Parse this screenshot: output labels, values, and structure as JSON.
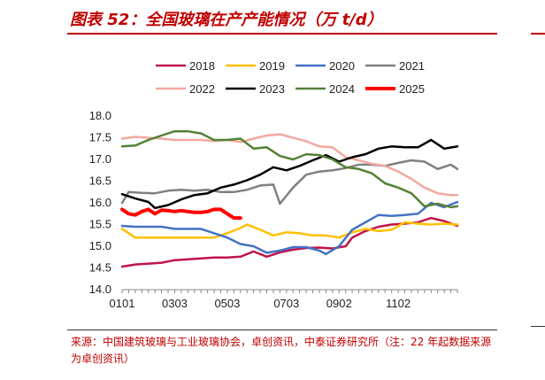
{
  "header": {
    "title": "图表 52：全国玻璃在产产能情况（万 t/d）",
    "accent_color": "#c00000"
  },
  "source_note": "来源：中国建筑玻璃与工业玻璃协会，卓创资讯，中泰证券研究所（注：22 年起数据来源为卓创资讯）",
  "chart_data": {
    "type": "line",
    "title": "",
    "xlabel": "",
    "ylabel": "",
    "x_ticks": [
      "0101",
      "0303",
      "0503",
      "0703",
      "0902",
      "1102"
    ],
    "x_tick_weeks": [
      1,
      9,
      17,
      26,
      34,
      43
    ],
    "x_range_weeks": [
      1,
      52
    ],
    "y_ticks": [
      "14.0",
      "14.5",
      "15.0",
      "15.5",
      "16.0",
      "16.5",
      "17.0",
      "17.5",
      "18.0"
    ],
    "ylim": [
      14.0,
      18.0
    ],
    "grid": false,
    "legend_position": "top",
    "series": [
      {
        "name": "2018",
        "color": "#c0144b",
        "width": 2.5,
        "points": [
          [
            1,
            14.53
          ],
          [
            3,
            14.58
          ],
          [
            5,
            14.6
          ],
          [
            7,
            14.62
          ],
          [
            9,
            14.68
          ],
          [
            11,
            14.7
          ],
          [
            13,
            14.72
          ],
          [
            15,
            14.74
          ],
          [
            17,
            14.74
          ],
          [
            19,
            14.76
          ],
          [
            21,
            14.88
          ],
          [
            23,
            14.76
          ],
          [
            25,
            14.86
          ],
          [
            27,
            14.92
          ],
          [
            29,
            14.96
          ],
          [
            31,
            14.97
          ],
          [
            33,
            14.95
          ],
          [
            35,
            15.0
          ],
          [
            36,
            15.2
          ],
          [
            38,
            15.35
          ],
          [
            40,
            15.45
          ],
          [
            42,
            15.5
          ],
          [
            44,
            15.52
          ],
          [
            46,
            15.55
          ],
          [
            48,
            15.65
          ],
          [
            50,
            15.58
          ],
          [
            52,
            15.47
          ]
        ]
      },
      {
        "name": "2019",
        "color": "#ffc000",
        "width": 2.5,
        "points": [
          [
            1,
            15.4
          ],
          [
            3,
            15.2
          ],
          [
            5,
            15.2
          ],
          [
            7,
            15.2
          ],
          [
            9,
            15.2
          ],
          [
            11,
            15.2
          ],
          [
            13,
            15.2
          ],
          [
            15,
            15.2
          ],
          [
            17,
            15.3
          ],
          [
            19,
            15.42
          ],
          [
            20,
            15.5
          ],
          [
            22,
            15.38
          ],
          [
            24,
            15.25
          ],
          [
            26,
            15.32
          ],
          [
            28,
            15.3
          ],
          [
            30,
            15.25
          ],
          [
            32,
            15.25
          ],
          [
            34,
            15.2
          ],
          [
            36,
            15.32
          ],
          [
            38,
            15.4
          ],
          [
            40,
            15.35
          ],
          [
            42,
            15.38
          ],
          [
            44,
            15.55
          ],
          [
            46,
            15.52
          ],
          [
            48,
            15.5
          ],
          [
            50,
            15.52
          ],
          [
            52,
            15.5
          ]
        ]
      },
      {
        "name": "2020",
        "color": "#4472c4",
        "width": 2.5,
        "points": [
          [
            1,
            15.47
          ],
          [
            3,
            15.45
          ],
          [
            5,
            15.45
          ],
          [
            7,
            15.45
          ],
          [
            9,
            15.4
          ],
          [
            11,
            15.4
          ],
          [
            13,
            15.4
          ],
          [
            15,
            15.3
          ],
          [
            17,
            15.2
          ],
          [
            19,
            15.05
          ],
          [
            21,
            15.0
          ],
          [
            23,
            14.85
          ],
          [
            25,
            14.9
          ],
          [
            27,
            14.98
          ],
          [
            29,
            14.98
          ],
          [
            31,
            14.9
          ],
          [
            32,
            14.82
          ],
          [
            34,
            15.0
          ],
          [
            36,
            15.38
          ],
          [
            38,
            15.55
          ],
          [
            40,
            15.72
          ],
          [
            42,
            15.7
          ],
          [
            44,
            15.72
          ],
          [
            46,
            15.75
          ],
          [
            48,
            16.0
          ],
          [
            50,
            15.9
          ],
          [
            52,
            16.02
          ]
        ]
      },
      {
        "name": "2021",
        "color": "#808080",
        "width": 2.5,
        "points": [
          [
            1,
            16.0
          ],
          [
            2,
            16.25
          ],
          [
            4,
            16.23
          ],
          [
            6,
            16.22
          ],
          [
            8,
            16.28
          ],
          [
            10,
            16.3
          ],
          [
            12,
            16.28
          ],
          [
            14,
            16.3
          ],
          [
            16,
            16.25
          ],
          [
            18,
            16.25
          ],
          [
            20,
            16.3
          ],
          [
            22,
            16.4
          ],
          [
            24,
            16.42
          ],
          [
            25,
            15.98
          ],
          [
            27,
            16.35
          ],
          [
            29,
            16.65
          ],
          [
            31,
            16.72
          ],
          [
            33,
            16.75
          ],
          [
            35,
            16.8
          ],
          [
            37,
            16.88
          ],
          [
            39,
            16.88
          ],
          [
            41,
            16.85
          ],
          [
            43,
            16.92
          ],
          [
            45,
            16.98
          ],
          [
            47,
            16.95
          ],
          [
            49,
            16.78
          ],
          [
            51,
            16.88
          ],
          [
            52,
            16.78
          ]
        ]
      },
      {
        "name": "2022",
        "color": "#f4a9a0",
        "width": 2.5,
        "points": [
          [
            1,
            17.48
          ],
          [
            3,
            17.52
          ],
          [
            5,
            17.5
          ],
          [
            7,
            17.48
          ],
          [
            9,
            17.45
          ],
          [
            11,
            17.45
          ],
          [
            13,
            17.45
          ],
          [
            15,
            17.42
          ],
          [
            17,
            17.45
          ],
          [
            19,
            17.4
          ],
          [
            21,
            17.48
          ],
          [
            23,
            17.55
          ],
          [
            25,
            17.58
          ],
          [
            27,
            17.5
          ],
          [
            29,
            17.42
          ],
          [
            31,
            17.3
          ],
          [
            33,
            17.28
          ],
          [
            35,
            17.05
          ],
          [
            37,
            16.98
          ],
          [
            39,
            16.9
          ],
          [
            41,
            16.85
          ],
          [
            43,
            16.72
          ],
          [
            45,
            16.55
          ],
          [
            47,
            16.35
          ],
          [
            49,
            16.22
          ],
          [
            51,
            16.18
          ],
          [
            52,
            16.18
          ]
        ]
      },
      {
        "name": "2023",
        "color": "#000000",
        "width": 2.5,
        "points": [
          [
            1,
            16.2
          ],
          [
            3,
            16.1
          ],
          [
            5,
            16.02
          ],
          [
            6,
            15.88
          ],
          [
            8,
            15.95
          ],
          [
            10,
            16.08
          ],
          [
            12,
            16.18
          ],
          [
            14,
            16.22
          ],
          [
            16,
            16.35
          ],
          [
            18,
            16.42
          ],
          [
            20,
            16.52
          ],
          [
            22,
            16.65
          ],
          [
            24,
            16.82
          ],
          [
            26,
            16.75
          ],
          [
            28,
            16.85
          ],
          [
            30,
            16.98
          ],
          [
            32,
            17.1
          ],
          [
            34,
            16.95
          ],
          [
            36,
            17.05
          ],
          [
            38,
            17.12
          ],
          [
            40,
            17.25
          ],
          [
            42,
            17.3
          ],
          [
            44,
            17.28
          ],
          [
            46,
            17.28
          ],
          [
            48,
            17.45
          ],
          [
            50,
            17.25
          ],
          [
            52,
            17.3
          ]
        ]
      },
      {
        "name": "2024",
        "color": "#548235",
        "width": 2.5,
        "points": [
          [
            1,
            17.3
          ],
          [
            3,
            17.32
          ],
          [
            5,
            17.45
          ],
          [
            7,
            17.55
          ],
          [
            9,
            17.65
          ],
          [
            11,
            17.65
          ],
          [
            13,
            17.6
          ],
          [
            15,
            17.45
          ],
          [
            17,
            17.45
          ],
          [
            19,
            17.48
          ],
          [
            21,
            17.25
          ],
          [
            23,
            17.28
          ],
          [
            25,
            17.08
          ],
          [
            27,
            17.0
          ],
          [
            29,
            17.12
          ],
          [
            31,
            17.1
          ],
          [
            33,
            17.0
          ],
          [
            35,
            16.82
          ],
          [
            37,
            16.78
          ],
          [
            39,
            16.68
          ],
          [
            41,
            16.45
          ],
          [
            43,
            16.35
          ],
          [
            45,
            16.22
          ],
          [
            47,
            15.92
          ],
          [
            49,
            15.98
          ],
          [
            51,
            15.9
          ],
          [
            52,
            15.92
          ]
        ]
      },
      {
        "name": "2025",
        "color": "#ff0000",
        "width": 4,
        "points": [
          [
            1,
            15.85
          ],
          [
            2,
            15.75
          ],
          [
            3,
            15.72
          ],
          [
            4,
            15.8
          ],
          [
            5,
            15.85
          ],
          [
            6,
            15.75
          ],
          [
            7,
            15.83
          ],
          [
            8,
            15.82
          ],
          [
            9,
            15.8
          ],
          [
            10,
            15.82
          ],
          [
            11,
            15.8
          ],
          [
            12,
            15.78
          ],
          [
            13,
            15.78
          ],
          [
            14,
            15.8
          ],
          [
            15,
            15.85
          ],
          [
            16,
            15.85
          ],
          [
            17,
            15.75
          ],
          [
            18,
            15.65
          ],
          [
            19,
            15.65
          ]
        ]
      }
    ]
  }
}
